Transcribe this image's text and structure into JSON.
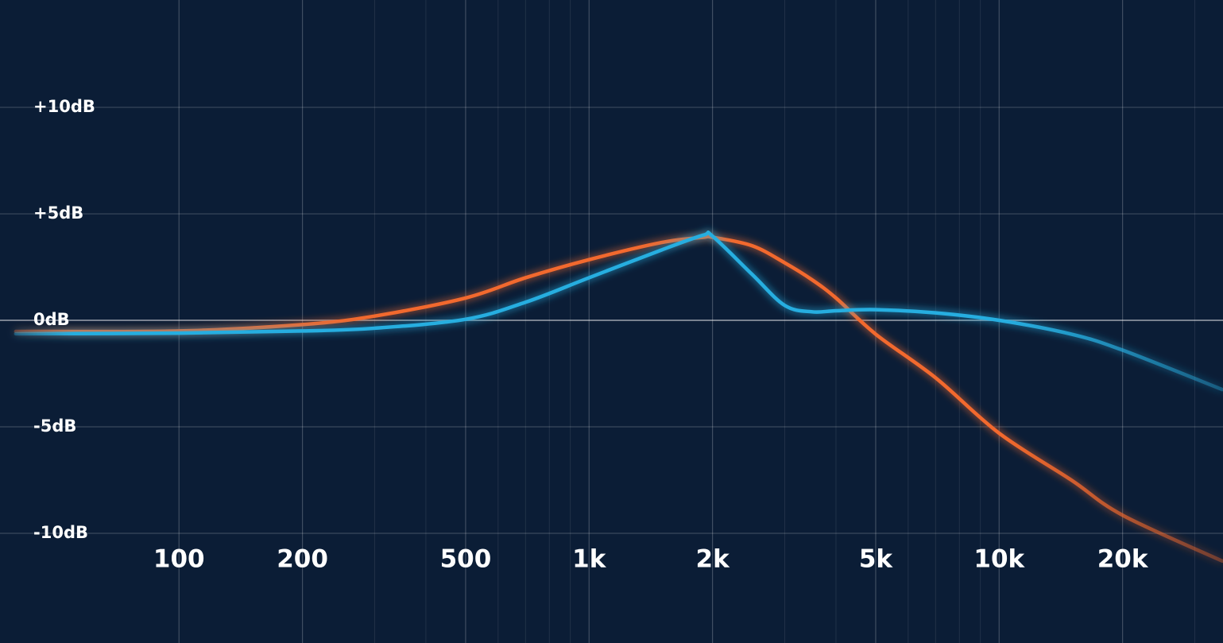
{
  "chart_data": {
    "type": "line",
    "log_x": true,
    "grid": true,
    "background": "#0b1d36",
    "xlim": [
      36.6,
      35150
    ],
    "ylim": [
      -15.15,
      15.04
    ],
    "xticks": [
      100,
      200,
      500,
      {
        "value": 1000,
        "label": "1k"
      },
      {
        "value": 2000,
        "label": "2k"
      },
      {
        "value": 5000,
        "label": "5k"
      },
      {
        "value": 10000,
        "label": "10k"
      },
      {
        "value": 20000,
        "label": "20k"
      }
    ],
    "minor_xticks": [
      300,
      400,
      600,
      700,
      800,
      900,
      3000,
      4000,
      6000,
      7000,
      8000,
      9000,
      30000
    ],
    "yticks": [
      {
        "value": 10,
        "label": "+10dB"
      },
      {
        "value": 5,
        "label": "+5dB"
      },
      {
        "value": 0,
        "label": "0dB"
      },
      {
        "value": -5,
        "label": "-5dB"
      },
      {
        "value": -10,
        "label": "-10dB"
      }
    ],
    "x": [
      40,
      100,
      200,
      300,
      500,
      700,
      1000,
      1500,
      1900,
      2000,
      2500,
      3000,
      3500,
      4000,
      5000,
      7000,
      10000,
      15000,
      20000,
      35000
    ],
    "series": [
      {
        "color": "#f2692d",
        "values": [
          -0.52,
          -0.5,
          -0.2,
          0.2,
          1.05,
          2.0,
          2.85,
          3.65,
          3.9,
          3.9,
          3.5,
          2.7,
          1.9,
          1.05,
          -0.65,
          -2.7,
          -5.3,
          -7.5,
          -9.15,
          -11.3
        ]
      },
      {
        "color": "#27aee0",
        "values": [
          -0.63,
          -0.6,
          -0.5,
          -0.37,
          0.05,
          0.85,
          2.0,
          3.3,
          4.0,
          3.95,
          2.15,
          0.7,
          0.4,
          0.45,
          0.5,
          0.35,
          0,
          -0.65,
          -1.4,
          -3.25
        ]
      }
    ]
  }
}
